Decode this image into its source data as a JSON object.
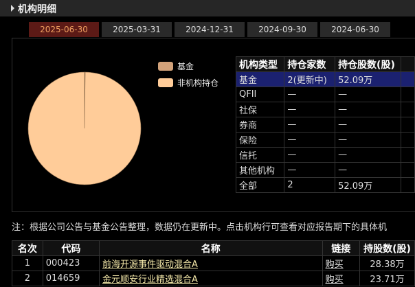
{
  "header": {
    "title": "机构明细"
  },
  "tabs": [
    "2025-06-30",
    "2025-03-31",
    "2024-12-31",
    "2024-09-30",
    "2024-06-30"
  ],
  "pie": {
    "type": "pie",
    "series": [
      {
        "name": "基金",
        "color": "#d2a27a",
        "value": 0.2
      },
      {
        "name": "非机构持仓",
        "color": "#ffcc99",
        "value": 99.8
      }
    ]
  },
  "holdings_table": {
    "columns": [
      "机构类型",
      "持仓家数",
      "持仓股数(股)"
    ],
    "rows": [
      [
        "基金",
        "2(更新中)",
        "52.09万"
      ],
      [
        "QFII",
        "—",
        "—"
      ],
      [
        "社保",
        "—",
        "—"
      ],
      [
        "券商",
        "—",
        "—"
      ],
      [
        "保险",
        "—",
        "—"
      ],
      [
        "信托",
        "—",
        "—"
      ],
      [
        "其他机构",
        "—",
        "—"
      ],
      [
        "全部",
        "2",
        "52.09万"
      ]
    ]
  },
  "note": "注：根据公司公告与基金公告整理，数据仍在更新中。点击机构行可查看对应报告期下的具体机",
  "funds_table": {
    "columns": [
      "名次",
      "代码",
      "名称",
      "链接",
      "持股数(股)"
    ],
    "rows": [
      [
        "1",
        "000423",
        "前海开源事件驱动混合A",
        "购买",
        "28.38万"
      ],
      [
        "2",
        "014659",
        "金元顺安行业精选混合A",
        "购买",
        "23.71万"
      ]
    ]
  }
}
